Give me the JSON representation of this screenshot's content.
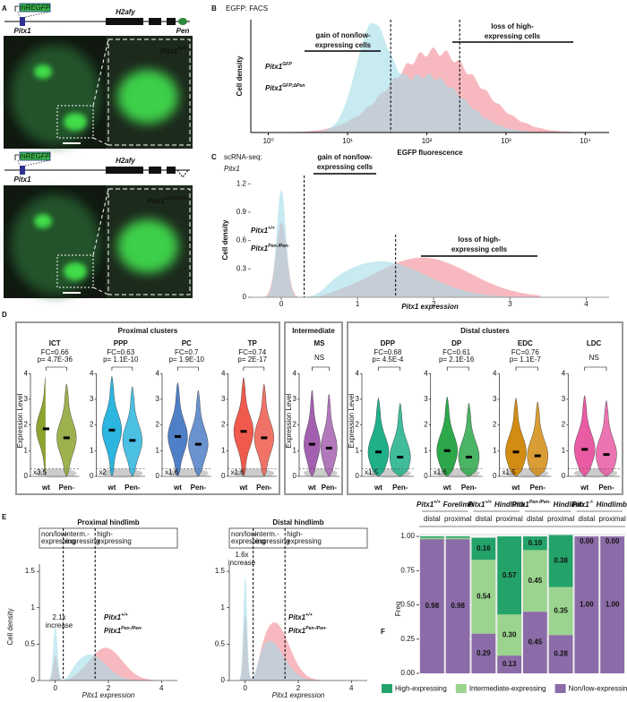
{
  "panel_a": {
    "letter": "A",
    "construct_top": {
      "reporter": "mREGFP",
      "gene": "Pitx1",
      "neighbor": "H2afy",
      "enhancer": "Pen"
    },
    "construct_bottom": {
      "reporter": "mREGFP",
      "gene": "Pitx1",
      "neighbor": "H2afy"
    },
    "genotype_top": {
      "base": "Pitx1",
      "sup": "GFP"
    },
    "genotype_bottom": {
      "base": "Pitx1",
      "sup": "GFP;ΔPen"
    }
  },
  "panel_b": {
    "letter": "B",
    "title": "EGFP: FACS",
    "ylabel": "Cell density",
    "xlabel": "EGFP fluorescence",
    "log_x": true,
    "xlim": [
      0.6,
      20000
    ],
    "xticks": [
      {
        "value": 1,
        "label": "10⁰"
      },
      {
        "value": 10,
        "label": "10¹"
      },
      {
        "value": 100,
        "label": "10²"
      },
      {
        "value": 1000,
        "label": "10³"
      },
      {
        "value": 10000,
        "label": "10⁴"
      }
    ],
    "thresholds": [
      35,
      260
    ],
    "annotations": [
      [
        "gain of non/low-",
        "expressing cells"
      ],
      [
        "loss of high-",
        "expressing cells"
      ]
    ],
    "series": [
      {
        "name": {
          "base": "Pitx1",
          "sup": "GFP"
        },
        "color": "#c8102e"
      },
      {
        "name": {
          "base": "Pitx1",
          "sup": "GFP;ΔPen"
        },
        "color": "#62c6da"
      }
    ]
  },
  "panel_c": {
    "letter": "C",
    "title": [
      "scRNA-seq:",
      "Pitx1"
    ],
    "ylabel": "Cell density",
    "xlabel": "Pitx1 expression",
    "xlim": [
      -0.4,
      4.3
    ],
    "ylim": [
      0,
      1.25
    ],
    "xticks": [
      0,
      1,
      2,
      3,
      4
    ],
    "yticks": [
      0,
      0.3,
      0.6,
      0.9,
      1.2
    ],
    "thresholds": [
      0.3,
      1.5
    ],
    "annotations": [
      [
        "gain of non/low-",
        "expressing cells"
      ],
      [
        "loss of high-",
        "expressing cells"
      ]
    ],
    "series": [
      {
        "name": {
          "base": "Pitx1",
          "sup": "+/+"
        },
        "color": "#c8102e"
      },
      {
        "name": {
          "base": "Pitx1",
          "sup": "Pen-/Pen-"
        },
        "color": "#62c6da"
      }
    ]
  },
  "panel_d": {
    "letter": "D",
    "ylabel": "Expression Level",
    "ylim": [
      0,
      4.6
    ],
    "yticks": [
      0,
      1,
      2,
      3,
      4
    ],
    "threshold": 0.3,
    "categories": [
      "wt",
      "Pen-"
    ],
    "groups": [
      {
        "title": "Proximal clusters",
        "clusters": [
          {
            "name": "ICT",
            "color": "#8ca330",
            "stat": [
              "FC=0.66",
              "p= 4.7E-36"
            ],
            "fold": "x3.5",
            "medians": [
              1.85,
              1.5
            ]
          },
          {
            "name": "PPP",
            "color": "#2cb5de",
            "stat": [
              "FC=0.63",
              "p= 1.1E-10"
            ],
            "fold": "x2",
            "medians": [
              1.8,
              1.4
            ]
          },
          {
            "name": "PC",
            "color": "#4f7fc6",
            "stat": [
              "FC=0.7",
              "p= 1.9E-10"
            ],
            "fold": "x1.6",
            "medians": [
              1.55,
              1.25
            ]
          },
          {
            "name": "TP",
            "color": "#ef5a4c",
            "stat": [
              "FC=0.74",
              "p= 2E-17"
            ],
            "fold": "x1.6",
            "medians": [
              1.75,
              1.5
            ]
          }
        ]
      },
      {
        "title": "Intermediate",
        "clusters": [
          {
            "name": "MS",
            "color": "#a460b0",
            "stat": [
              "NS"
            ],
            "medians": [
              1.25,
              1.1
            ]
          }
        ]
      },
      {
        "title": "Distal clusters",
        "clusters": [
          {
            "name": "DPP",
            "color": "#1fb08a",
            "stat": [
              "FC=0.68",
              "p= 4.5E-4"
            ],
            "fold": "x1.5",
            "medians": [
              0.95,
              0.75
            ]
          },
          {
            "name": "DP",
            "color": "#2ca84a",
            "stat": [
              "FC=0.61",
              "p= 2.1E-16"
            ],
            "fold": "x1.6",
            "medians": [
              1.0,
              0.75
            ]
          },
          {
            "name": "EDC",
            "color": "#d38c12",
            "stat": [
              "FC=0.76",
              "p= 1.1E-7"
            ],
            "fold": "x1.5",
            "medians": [
              0.95,
              0.8
            ]
          },
          {
            "name": "LDC",
            "color": "#e95ba3",
            "stat": [
              "NS"
            ],
            "medians": [
              1.05,
              0.85
            ]
          }
        ]
      }
    ]
  },
  "panel_e": {
    "letter": "E",
    "ylabel": "Cell density",
    "xlabel": "Pitx1 expression",
    "xlim": [
      -0.6,
      4.6
    ],
    "ylim": [
      0,
      1.6
    ],
    "xticks": [
      0,
      2,
      4
    ],
    "yticks": [
      0,
      0.5,
      1,
      1.5
    ],
    "thresholds": [
      0.3,
      1.5
    ],
    "bins": [
      [
        "non/low-",
        "expressing"
      ],
      [
        "interm.-",
        "expressing"
      ],
      [
        "high-",
        "expressing"
      ]
    ],
    "series": [
      {
        "name": {
          "base": "Pitx1",
          "sup": "+/+"
        },
        "color": "#c8102e"
      },
      {
        "name": {
          "base": "Pitx1",
          "sup": "Pen-/Pen-"
        },
        "color": "#62c6da"
      }
    ],
    "plots": [
      {
        "title": "Proximal hindlimb",
        "note": [
          "2.1x",
          "increase"
        ]
      },
      {
        "title": "Distal hindlimb",
        "note": [
          "1.6x",
          "increase"
        ]
      }
    ]
  },
  "panel_f": {
    "letter": "F",
    "ylabel": "Freq",
    "ylim": [
      0,
      1.02
    ],
    "yticks": [
      {
        "value": 0,
        "label": "0.00"
      },
      {
        "value": 0.25,
        "label": "0.25"
      },
      {
        "value": 0.5,
        "label": "0.50"
      },
      {
        "value": 0.75,
        "label": "0.75"
      },
      {
        "value": 1,
        "label": "1.00"
      }
    ],
    "headers": [
      {
        "genotype": {
          "base": "Pitx1",
          "sup": "+/+"
        },
        "tissue": "Forelimb"
      },
      {
        "genotype": {
          "base": "Pitx1",
          "sup": "+/+"
        },
        "tissue": "Hindlimb"
      },
      {
        "genotype": {
          "base": "Pitx1",
          "sup": "Pen-/Pen-"
        },
        "tissue": "Hindlimb"
      },
      {
        "genotype": {
          "base": "Pitx1",
          "sup": "-/-"
        },
        "tissue": "Hindlimb"
      }
    ],
    "categories": [
      "distal",
      "proximal",
      "distal",
      "proximal",
      "distal",
      "proximal",
      "distal",
      "proximal"
    ],
    "series": [
      {
        "name": "High-expressing",
        "color": "#23a36a",
        "values": [
          0.01,
          0.01,
          0.16,
          0.57,
          0.1,
          0.38,
          0.0,
          0.0
        ],
        "value_labels": [
          null,
          null,
          "0.16",
          "0.57",
          "0.10",
          "0.38",
          "0.00",
          "0.00"
        ]
      },
      {
        "name": "Intermediate-expressing",
        "color": "#9ad48e",
        "values": [
          0.01,
          0.01,
          0.54,
          0.3,
          0.45,
          0.35,
          0.0,
          0.0
        ],
        "value_labels": [
          null,
          null,
          "0.54",
          "0.30",
          "0.45",
          "0.35",
          null,
          null
        ]
      },
      {
        "name": "Non/low-expressing",
        "color": "#8c6ca8",
        "values": [
          0.98,
          0.98,
          0.29,
          0.13,
          0.45,
          0.28,
          1.0,
          1.0
        ],
        "value_labels": [
          "0.98",
          "0.98",
          "0.29",
          "0.13",
          "0.45",
          "0.28",
          "1.00",
          "1.00"
        ]
      }
    ]
  }
}
